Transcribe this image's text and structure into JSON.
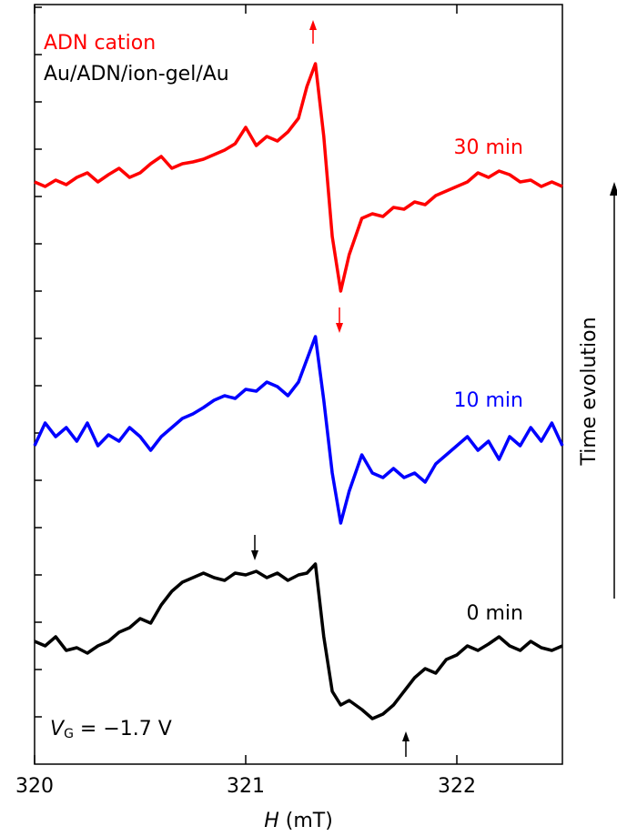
{
  "chart_data": {
    "type": "line",
    "x": [
      320.0,
      320.05,
      320.1,
      320.15,
      320.2,
      320.25,
      320.3,
      320.35,
      320.4,
      320.45,
      320.5,
      320.55,
      320.6,
      320.65,
      320.7,
      320.75,
      320.8,
      320.85,
      320.9,
      320.95,
      321.0,
      321.05,
      321.1,
      321.15,
      321.2,
      321.25,
      321.29,
      321.33,
      321.37,
      321.41,
      321.45,
      321.49,
      321.55,
      321.6,
      321.65,
      321.7,
      321.75,
      321.8,
      321.85,
      321.9,
      321.95,
      322.0,
      322.05,
      322.1,
      322.15,
      322.2,
      322.25,
      322.3,
      322.35,
      322.4,
      322.45,
      322.5
    ],
    "series": [
      {
        "name": "30 min",
        "color": "#ff0000",
        "values": [
          640,
          635,
          642,
          637,
          645,
          650,
          640,
          648,
          655,
          645,
          650,
          660,
          668,
          655,
          660,
          662,
          665,
          670,
          675,
          682,
          700,
          680,
          690,
          685,
          695,
          710,
          745,
          770,
          690,
          580,
          520,
          560,
          600,
          605,
          602,
          612,
          610,
          618,
          615,
          625,
          630,
          635,
          640,
          650,
          645,
          652,
          648,
          640,
          642,
          635,
          640,
          635
        ]
      },
      {
        "name": "10 min",
        "color": "#0000ff",
        "values": [
          350,
          375,
          360,
          370,
          355,
          375,
          350,
          362,
          355,
          370,
          360,
          345,
          360,
          370,
          380,
          385,
          392,
          400,
          405,
          402,
          412,
          410,
          420,
          415,
          405,
          420,
          445,
          470,
          400,
          320,
          265,
          300,
          340,
          320,
          315,
          325,
          315,
          320,
          310,
          330,
          340,
          350,
          360,
          345,
          355,
          335,
          360,
          350,
          370,
          355,
          375,
          350
        ]
      },
      {
        "name": "0 min",
        "color": "#000000",
        "values": [
          135,
          130,
          140,
          125,
          128,
          122,
          130,
          135,
          145,
          150,
          160,
          155,
          175,
          190,
          200,
          205,
          210,
          205,
          202,
          210,
          208,
          212,
          205,
          210,
          202,
          208,
          210,
          220,
          140,
          80,
          65,
          70,
          60,
          50,
          55,
          65,
          80,
          95,
          105,
          100,
          115,
          120,
          130,
          125,
          132,
          140,
          130,
          125,
          135,
          128,
          125,
          130
        ]
      }
    ],
    "xlim": [
      320,
      322.5
    ],
    "xticks": [
      320,
      321,
      322
    ],
    "ylim": [
      0,
      835
    ],
    "yticks": [
      52,
      104,
      156,
      208,
      260,
      312,
      364,
      416,
      468,
      520,
      572,
      624,
      676,
      728,
      780,
      832
    ],
    "annotations": {
      "species": "ADN cation",
      "device": "Au/ADN/ion-gel/Au",
      "time_axis": "Time evolution"
    },
    "gate_voltage": {
      "symbol": "V",
      "subscript": "G",
      "text": " = −1.7 V"
    },
    "x_label": {
      "symbol": "H",
      "text": " (mT)"
    }
  }
}
